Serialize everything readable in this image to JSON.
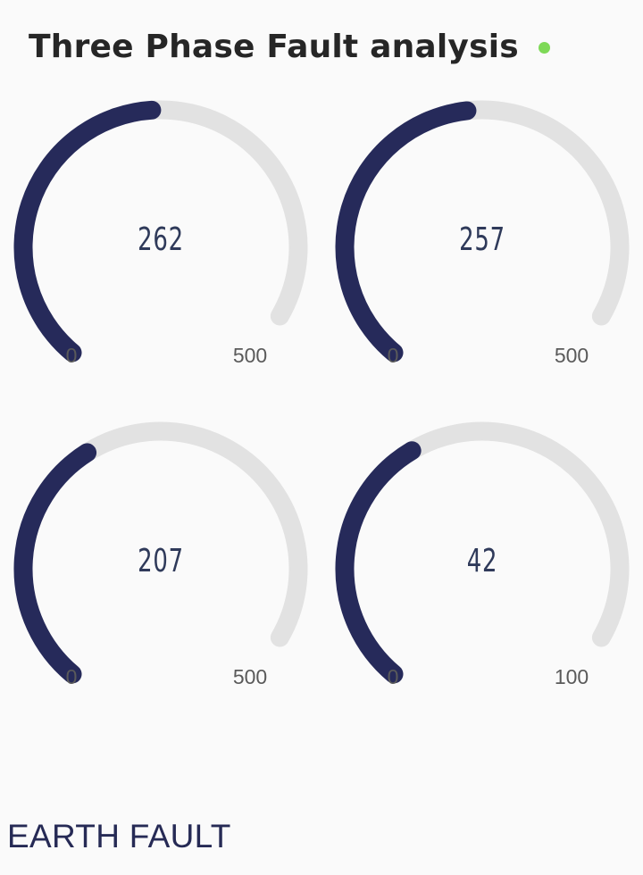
{
  "header": {
    "title": "Three Phase Fault analysis",
    "status_color": "#7ed957"
  },
  "colors": {
    "gauge_fill": "#262a5a",
    "gauge_track": "#e2e2e2"
  },
  "gauges": [
    {
      "value": "262",
      "min": "0",
      "max": "500",
      "fraction": 0.524
    },
    {
      "value": "257",
      "min": "0",
      "max": "500",
      "fraction": 0.514
    },
    {
      "value": "207",
      "min": "0",
      "max": "500",
      "fraction": 0.414
    },
    {
      "value": "42",
      "min": "0",
      "max": "100",
      "fraction": 0.42
    }
  ],
  "section": {
    "title": "EARTH FAULT"
  }
}
